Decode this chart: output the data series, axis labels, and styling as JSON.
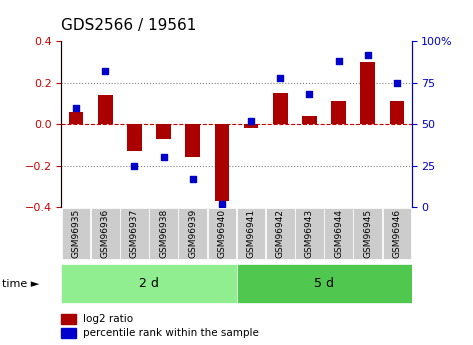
{
  "title": "GDS2566 / 19561",
  "samples": [
    "GSM96935",
    "GSM96936",
    "GSM96937",
    "GSM96938",
    "GSM96939",
    "GSM96940",
    "GSM96941",
    "GSM96942",
    "GSM96943",
    "GSM96944",
    "GSM96945",
    "GSM96946"
  ],
  "log2_ratio": [
    0.06,
    0.14,
    -0.13,
    -0.07,
    -0.16,
    -0.37,
    -0.02,
    0.15,
    0.04,
    0.11,
    0.3,
    0.11
  ],
  "percentile_rank": [
    60,
    82,
    25,
    30,
    17,
    2,
    52,
    78,
    68,
    88,
    92,
    75
  ],
  "groups": [
    {
      "label": "2 d",
      "indices": [
        0,
        1,
        2,
        3,
        4,
        5
      ],
      "color": "#90EE90"
    },
    {
      "label": "5 d",
      "indices": [
        6,
        7,
        8,
        9,
        10,
        11
      ],
      "color": "#50C850"
    }
  ],
  "bar_color": "#AA0000",
  "dot_color": "#0000CC",
  "ylim_left": [
    -0.4,
    0.4
  ],
  "ylim_right": [
    0,
    100
  ],
  "yticks_left": [
    -0.4,
    -0.2,
    0.0,
    0.2,
    0.4
  ],
  "yticks_right": [
    0,
    25,
    50,
    75,
    100
  ],
  "ytick_labels_right": [
    "0",
    "25",
    "50",
    "75",
    "100%"
  ],
  "grid_values": [
    -0.2,
    0.2
  ],
  "bar_width": 0.5
}
